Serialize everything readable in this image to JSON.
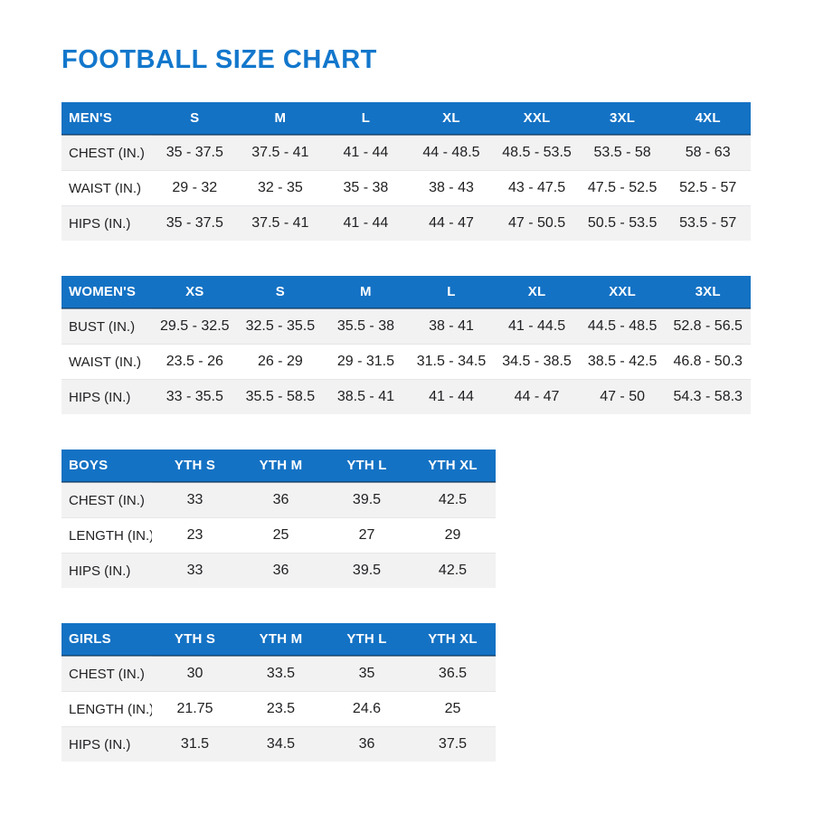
{
  "page": {
    "title": "FOOTBALL SIZE CHART"
  },
  "colors": {
    "title_blue": "#1277cc",
    "header_blue": "#1472c4",
    "stripe_gray": "#f2f2f3",
    "text": "#212124"
  },
  "tables": [
    {
      "id": "mens",
      "wide": true,
      "header": [
        "MEN'S",
        "S",
        "M",
        "L",
        "XL",
        "XXL",
        "3XL",
        "4XL"
      ],
      "rows": [
        [
          "CHEST (IN.)",
          "35 - 37.5",
          "37.5 - 41",
          "41 - 44",
          "44 - 48.5",
          "48.5 - 53.5",
          "53.5 - 58",
          "58 - 63"
        ],
        [
          "WAIST (IN.)",
          "29 - 32",
          "32 - 35",
          "35 - 38",
          "38 - 43",
          "43 - 47.5",
          "47.5 - 52.5",
          "52.5 - 57"
        ],
        [
          "HIPS (IN.)",
          "35 - 37.5",
          "37.5 - 41",
          "41 - 44",
          "44 - 47",
          "47 - 50.5",
          "50.5 - 53.5",
          "53.5 - 57"
        ]
      ]
    },
    {
      "id": "womens",
      "wide": true,
      "header": [
        "WOMEN'S",
        "XS",
        "S",
        "M",
        "L",
        "XL",
        "XXL",
        "3XL"
      ],
      "rows": [
        [
          "BUST (IN.)",
          "29.5 - 32.5",
          "32.5 - 35.5",
          "35.5 - 38",
          "38 - 41",
          "41 - 44.5",
          "44.5 - 48.5",
          "52.8 - 56.5"
        ],
        [
          "WAIST (IN.)",
          "23.5 - 26",
          "26 - 29",
          "29 - 31.5",
          "31.5 - 34.5",
          "34.5 - 38.5",
          "38.5 - 42.5",
          "46.8 - 50.3"
        ],
        [
          "HIPS (IN.)",
          "33 - 35.5",
          "35.5 - 58.5",
          "38.5 - 41",
          "41 - 44",
          "44 - 47",
          "47 - 50",
          "54.3 - 58.3"
        ]
      ]
    },
    {
      "id": "boys",
      "wide": false,
      "header": [
        "BOYS",
        "YTH S",
        "YTH M",
        "YTH L",
        "YTH XL"
      ],
      "rows": [
        [
          "CHEST (IN.)",
          "33",
          "36",
          "39.5",
          "42.5"
        ],
        [
          "LENGTH (IN.)",
          "23",
          "25",
          "27",
          "29"
        ],
        [
          "HIPS (IN.)",
          "33",
          "36",
          "39.5",
          "42.5"
        ]
      ]
    },
    {
      "id": "girls",
      "wide": false,
      "header": [
        "GIRLS",
        "YTH S",
        "YTH M",
        "YTH L",
        "YTH XL"
      ],
      "rows": [
        [
          "CHEST (IN.)",
          "30",
          "33.5",
          "35",
          "36.5"
        ],
        [
          "LENGTH (IN.)",
          "21.75",
          "23.5",
          "24.6",
          "25"
        ],
        [
          "HIPS (IN.)",
          "31.5",
          "34.5",
          "36",
          "37.5"
        ]
      ]
    }
  ]
}
